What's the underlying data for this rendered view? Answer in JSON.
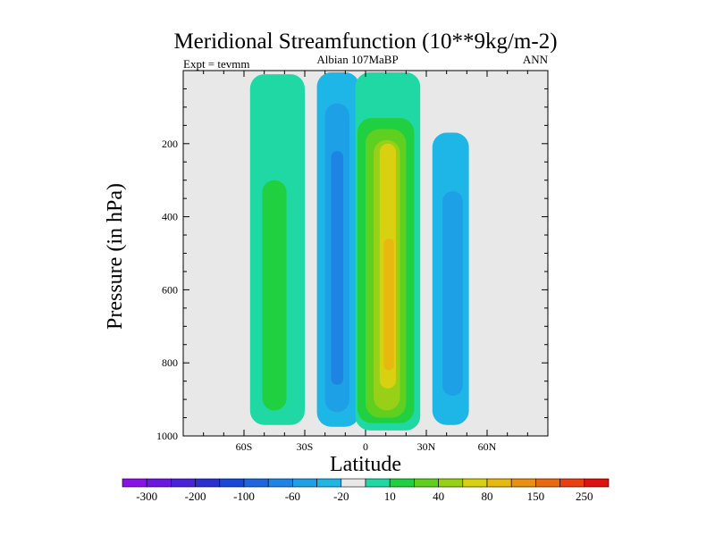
{
  "chart_data": {
    "type": "heatmap",
    "title": "Meridional Streamfunction (10**9kg/m-2)",
    "subtitle_left": "Expt = tevmm",
    "subtitle_center": "Albian   107MaBP",
    "subtitle_right": "ANN",
    "xlabel": "Latitude",
    "ylabel": "Pressure (in hPa)",
    "xlim": [
      -90,
      90
    ],
    "ylim": [
      1000,
      0
    ],
    "x_ticks": [
      {
        "value": -60,
        "label": "60S"
      },
      {
        "value": -30,
        "label": "30S"
      },
      {
        "value": 0,
        "label": "0"
      },
      {
        "value": 30,
        "label": "30N"
      },
      {
        "value": 60,
        "label": "60N"
      }
    ],
    "y_ticks": [
      {
        "value": 200,
        "label": "200"
      },
      {
        "value": 400,
        "label": "400"
      },
      {
        "value": 600,
        "label": "600"
      },
      {
        "value": 800,
        "label": "800"
      },
      {
        "value": 1000,
        "label": "1000"
      }
    ],
    "colorbar": {
      "colors": [
        "#8a10e8",
        "#6a18e0",
        "#4a22d8",
        "#2a30d0",
        "#1848d8",
        "#1e66e0",
        "#1e84e4",
        "#1ea0e6",
        "#1eb6e6",
        "#e8e8e8",
        "#20d8a4",
        "#20d040",
        "#60d020",
        "#98d018",
        "#d8d010",
        "#e8b810",
        "#e89010",
        "#e86a10",
        "#e84010",
        "#e01010"
      ],
      "labels": [
        "-300",
        "-200",
        "-100",
        "-60",
        "-20",
        "10",
        "40",
        "80",
        "150",
        "250"
      ]
    },
    "levels": [
      -300,
      -250,
      -200,
      -150,
      -100,
      -80,
      -60,
      -40,
      -20,
      -10,
      10,
      20,
      40,
      60,
      80,
      100,
      150,
      200,
      250,
      300
    ],
    "cells": [
      {
        "name": "southern-cell-outer",
        "value": 10,
        "color": "#20d8a4",
        "lat": [
          -57,
          -30
        ],
        "p": [
          10,
          970
        ]
      },
      {
        "name": "southern-cell-core",
        "value": 20,
        "color": "#20d040",
        "lat": [
          -51,
          -39
        ],
        "p": [
          300,
          930
        ]
      },
      {
        "name": "hadley-south-outer",
        "value": -10,
        "color": "#1eb6e6",
        "lat": [
          -24,
          -3
        ],
        "p": [
          5,
          975
        ]
      },
      {
        "name": "hadley-south-mid",
        "value": -20,
        "color": "#1ea0e6",
        "lat": [
          -20,
          -8
        ],
        "p": [
          90,
          935
        ]
      },
      {
        "name": "hadley-south-core",
        "value": -40,
        "color": "#1e84e4",
        "lat": [
          -17,
          -11
        ],
        "p": [
          220,
          860
        ]
      },
      {
        "name": "hadley-north-outer",
        "value": 10,
        "color": "#20d8a4",
        "lat": [
          -5,
          27
        ],
        "p": [
          5,
          985
        ]
      },
      {
        "name": "hadley-north-l2",
        "value": 20,
        "color": "#20d040",
        "lat": [
          -4,
          24
        ],
        "p": [
          130,
          965
        ]
      },
      {
        "name": "hadley-north-l3",
        "value": 40,
        "color": "#60d020",
        "lat": [
          0,
          20
        ],
        "p": [
          160,
          950
        ]
      },
      {
        "name": "hadley-north-l4",
        "value": 60,
        "color": "#98d018",
        "lat": [
          4,
          17
        ],
        "p": [
          190,
          930
        ]
      },
      {
        "name": "hadley-north-l5",
        "value": 80,
        "color": "#d8d010",
        "lat": [
          7,
          15
        ],
        "p": [
          200,
          870
        ]
      },
      {
        "name": "hadley-north-core",
        "value": 100,
        "color": "#e8b810",
        "lat": [
          9,
          14
        ],
        "p": [
          460,
          820
        ]
      },
      {
        "name": "northern-cell-outer",
        "value": -10,
        "color": "#1eb6e6",
        "lat": [
          33,
          51
        ],
        "p": [
          170,
          970
        ]
      },
      {
        "name": "northern-cell-core",
        "value": -20,
        "color": "#1ea0e6",
        "lat": [
          38,
          48
        ],
        "p": [
          330,
          890
        ]
      }
    ]
  }
}
